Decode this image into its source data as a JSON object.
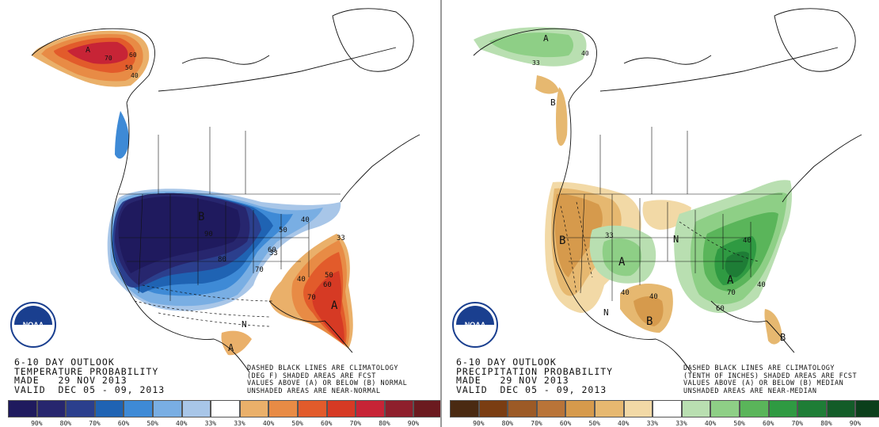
{
  "noaa_logo": {
    "text": "NOAA"
  },
  "temperature_panel": {
    "title_lines": [
      "6-10 DAY OUTLOOK",
      "TEMPERATURE PROBABILITY",
      "MADE   29 NOV 2013",
      "VALID  DEC 05 - 09, 2013"
    ],
    "note_lines": [
      "DASHED BLACK LINES ARE CLIMATOLOGY",
      "(DEG F) SHADED AREAS ARE FCST",
      "VALUES ABOVE (A) OR BELOW (B) NORMAL",
      "UNSHADED AREAS ARE NEAR-NORMAL"
    ],
    "map_labels": {
      "b_main": "B",
      "a_east": "A",
      "a_south": "A",
      "a_alaska": "A",
      "n_south": "N",
      "p90": "90",
      "p80": "80",
      "p70": "70",
      "p60": "60",
      "p50": "50",
      "p40": "40",
      "p33": "33",
      "p_e40": "40",
      "p_e50": "50",
      "p_e60": "60",
      "p_e70": "70",
      "p_e33": "33",
      "p_ak70": "70",
      "p_ak60": "60",
      "p_ak50": "50",
      "p_ak40": "40"
    },
    "legend": {
      "colors": [
        "#1f1a5e",
        "#27266e",
        "#2b3f8d",
        "#1f63b3",
        "#3e8ad6",
        "#79aee3",
        "#a8c6e8",
        "#ffffff",
        "#eab06a",
        "#e88b45",
        "#e25b2b",
        "#d63a24",
        "#c72436",
        "#8e1f2c",
        "#6b1a1f"
      ],
      "labels": [
        "90%",
        "80%",
        "70%",
        "60%",
        "50%",
        "40%",
        "33%",
        "33%",
        "40%",
        "50%",
        "60%",
        "70%",
        "80%",
        "90%"
      ]
    }
  },
  "precipitation_panel": {
    "title_lines": [
      "6-10 DAY OUTLOOK",
      "PRECIPITATION PROBABILITY",
      "MADE   29 NOV 2013",
      "VALID  DEC 05 - 09, 2013"
    ],
    "note_lines": [
      "DASHED BLACK LINES ARE CLIMATOLOGY",
      "(TENTH OF INCHES) SHADED AREAS ARE FCST",
      "VALUES ABOVE (A) OR BELOW (B) MEDIAN",
      "UNSHADED AREAS ARE NEAR-MEDIAN"
    ],
    "map_labels": {
      "b_west": "B",
      "b_southwest": "B",
      "b_florida": "B",
      "b_alaska": "B",
      "a_central": "A",
      "a_east": "A",
      "a_alaska": "A",
      "n_north": "N",
      "n_west": "N",
      "p40a": "40",
      "p40b": "40",
      "p33": "33",
      "p60": "60",
      "p70": "70",
      "p40c": "40",
      "p40d": "40",
      "p_ak40": "40",
      "p_ak33": "33"
    },
    "legend": {
      "colors": [
        "#4a2a12",
        "#7a3d12",
        "#9c5a26",
        "#b97438",
        "#d69a4c",
        "#e6b870",
        "#f2d9a6",
        "#ffffff",
        "#b9dfb1",
        "#8ecf86",
        "#5ab55a",
        "#2f9a42",
        "#1e7d36",
        "#135c28",
        "#0b3f1b"
      ],
      "labels": [
        "90%",
        "80%",
        "70%",
        "60%",
        "50%",
        "40%",
        "33%",
        "33%",
        "40%",
        "50%",
        "60%",
        "70%",
        "80%",
        "90%"
      ]
    }
  }
}
